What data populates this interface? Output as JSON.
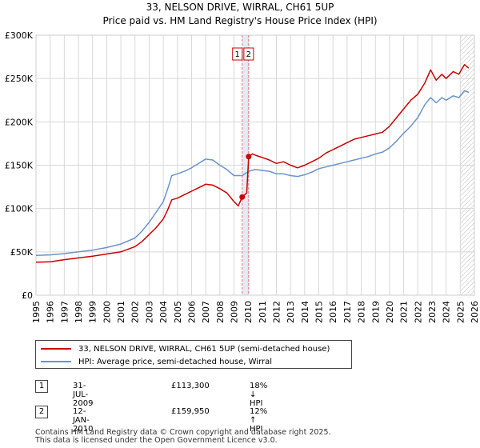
{
  "titles": {
    "line1": "33, NELSON DRIVE, WIRRAL, CH61 5UP",
    "line2": "Price paid vs. HM Land Registry's House Price Index (HPI)"
  },
  "colors": {
    "property": "#cc0000",
    "hpi": "#6a93c9",
    "marker": "#cc0000",
    "vline": "#e8707a",
    "band": "#dde6f3",
    "grid": "#d8d8d8"
  },
  "legend": {
    "property_label": "33, NELSON DRIVE, WIRRAL, CH61 5UP (semi-detached house)",
    "hpi_label": "HPI: Average price, semi-detached house, Wirral"
  },
  "sales": [
    {
      "num": "1",
      "date": "31-JUL-2009",
      "price": "£113,300",
      "hpi": "18% ↓ HPI"
    },
    {
      "num": "2",
      "date": "12-JAN-2010",
      "price": "£159,950",
      "hpi": "12% ↑ HPI"
    }
  ],
  "footer": {
    "line1": "Contains HM Land Registry data © Crown copyright and database right 2025.",
    "line2": "This data is licensed under the Open Government Licence v3.0."
  },
  "chart_data": {
    "type": "line",
    "title": "Price paid vs. HM Land Registry's House Price Index (HPI)",
    "xlabel": "",
    "ylabel": "",
    "xlim": [
      1995,
      2026
    ],
    "ylim": [
      0,
      300000
    ],
    "yticks": [
      {
        "value": 0,
        "label": "£0"
      },
      {
        "value": 50000,
        "label": "£50K"
      },
      {
        "value": 100000,
        "label": "£100K"
      },
      {
        "value": 150000,
        "label": "£150K"
      },
      {
        "value": 200000,
        "label": "£200K"
      },
      {
        "value": 250000,
        "label": "£250K"
      },
      {
        "value": 300000,
        "label": "£300K"
      }
    ],
    "xticks": [
      "1995",
      "1996",
      "1997",
      "1998",
      "1999",
      "2000",
      "2001",
      "2002",
      "2003",
      "2004",
      "2005",
      "2006",
      "2007",
      "2008",
      "2009",
      "2010",
      "2011",
      "2012",
      "2013",
      "2014",
      "2015",
      "2016",
      "2017",
      "2018",
      "2019",
      "2020",
      "2021",
      "2022",
      "2023",
      "2024",
      "2025",
      "2026"
    ],
    "grid": true,
    "forecast_start": 2025.0,
    "series": [
      {
        "name": "33, NELSON DRIVE, WIRRAL, CH61 5UP (semi-detached house)",
        "color": "#cc0000",
        "x": [
          1995.0,
          1996.0,
          1997.0,
          1998.0,
          1999.0,
          2000.0,
          2001.0,
          2002.0,
          2002.5,
          2003.0,
          2003.5,
          2004.0,
          2004.3,
          2004.6,
          2005.0,
          2005.5,
          2006.0,
          2006.5,
          2007.0,
          2007.5,
          2008.0,
          2008.5,
          2009.0,
          2009.3,
          2009.58,
          2009.9,
          2010.04,
          2010.3,
          2010.6,
          2011.0,
          2011.5,
          2012.0,
          2012.5,
          2013.0,
          2013.5,
          2014.0,
          2014.5,
          2015.0,
          2015.5,
          2016.0,
          2016.5,
          2017.0,
          2017.5,
          2018.0,
          2018.5,
          2019.0,
          2019.5,
          2020.0,
          2020.5,
          2021.0,
          2021.5,
          2022.0,
          2022.5,
          2022.9,
          2023.3,
          2023.7,
          2024.0,
          2024.5,
          2024.9,
          2025.3,
          2025.6
        ],
        "y": [
          38000,
          38500,
          41000,
          43000,
          45000,
          47500,
          50000,
          56000,
          62000,
          70000,
          78000,
          88000,
          98000,
          110000,
          112000,
          116000,
          120000,
          124000,
          128000,
          127000,
          123000,
          118000,
          108000,
          103000,
          113300,
          118000,
          159950,
          163000,
          161000,
          159000,
          156000,
          152000,
          154000,
          150000,
          147000,
          150000,
          154000,
          158000,
          164000,
          168000,
          172000,
          176000,
          180000,
          182000,
          184000,
          186000,
          188000,
          195000,
          205000,
          215000,
          225000,
          232000,
          245000,
          260000,
          248000,
          255000,
          250000,
          258000,
          255000,
          266000,
          262000
        ]
      },
      {
        "name": "HPI: Average price, semi-detached house, Wirral",
        "color": "#6a93c9",
        "x": [
          1995.0,
          1996.0,
          1997.0,
          1998.0,
          1999.0,
          2000.0,
          2001.0,
          2002.0,
          2002.5,
          2003.0,
          2003.5,
          2004.0,
          2004.3,
          2004.6,
          2005.0,
          2005.5,
          2006.0,
          2006.5,
          2007.0,
          2007.5,
          2008.0,
          2008.5,
          2009.0,
          2009.58,
          2010.04,
          2010.5,
          2011.0,
          2011.5,
          2012.0,
          2012.5,
          2013.0,
          2013.5,
          2014.0,
          2014.5,
          2015.0,
          2015.5,
          2016.0,
          2016.5,
          2017.0,
          2017.5,
          2018.0,
          2018.5,
          2019.0,
          2019.5,
          2020.0,
          2020.5,
          2021.0,
          2021.5,
          2022.0,
          2022.5,
          2022.9,
          2023.3,
          2023.7,
          2024.0,
          2024.5,
          2024.9,
          2025.3,
          2025.6
        ],
        "y": [
          46000,
          46500,
          48000,
          50000,
          52000,
          55000,
          59000,
          66000,
          74000,
          84000,
          96000,
          108000,
          122000,
          138000,
          140000,
          143000,
          147000,
          152000,
          157000,
          156000,
          150000,
          145000,
          138000,
          138000,
          143000,
          145000,
          144000,
          143000,
          140000,
          140000,
          138000,
          137000,
          139000,
          142000,
          146000,
          148000,
          150000,
          152000,
          154000,
          156000,
          158000,
          160000,
          163000,
          165000,
          170000,
          178000,
          187000,
          195000,
          205000,
          220000,
          228000,
          222000,
          228000,
          225000,
          230000,
          228000,
          236000,
          234000
        ]
      }
    ],
    "annotations": [
      {
        "label": "1",
        "x": 2009.58,
        "y": 113300
      },
      {
        "label": "2",
        "x": 2010.04,
        "y": 159950
      }
    ]
  }
}
